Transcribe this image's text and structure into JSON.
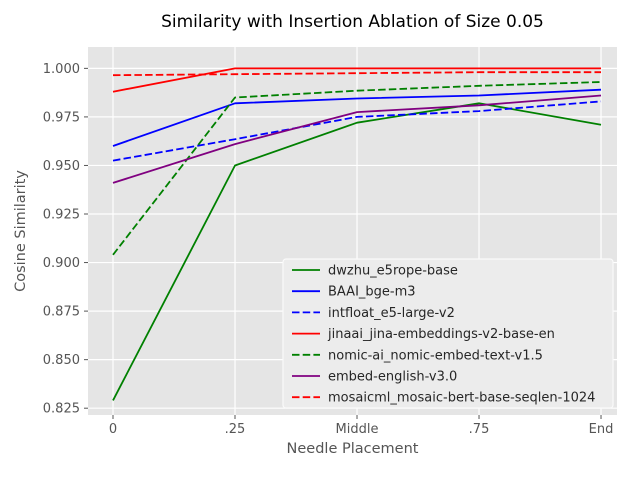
{
  "title": "Similarity with Insertion Ablation of Size 0.05",
  "chart_data": {
    "type": "line",
    "title": "Similarity with Insertion Ablation of Size 0.05",
    "xlabel": "Needle Placement",
    "ylabel": "Cosine Similarity",
    "categories": [
      "0",
      ".25",
      "Middle",
      ".75",
      "End"
    ],
    "x": [
      0,
      1,
      2,
      3,
      4
    ],
    "xlim": [
      -0.205,
      4.131
    ],
    "ylim": [
      0.8215,
      1.011
    ],
    "yticks": [
      0.825,
      0.85,
      0.875,
      0.9,
      0.925,
      0.95,
      0.975,
      1.0
    ],
    "ytick_labels": [
      "0.825",
      "0.850",
      "0.875",
      "0.900",
      "0.925",
      "0.950",
      "0.975",
      "1.000"
    ],
    "grid": true,
    "legend_position": "lower right",
    "series": [
      {
        "name": "dwzhu_e5rope-base",
        "color": "#008000",
        "dash": "solid",
        "values": [
          0.829,
          0.95,
          0.972,
          0.982,
          0.971
        ]
      },
      {
        "name": "BAAI_bge-m3",
        "color": "#0000ff",
        "dash": "solid",
        "values": [
          0.96,
          0.982,
          0.9845,
          0.986,
          0.989
        ]
      },
      {
        "name": "intfloat_e5-large-v2",
        "color": "#0000ff",
        "dash": "dashed",
        "values": [
          0.9525,
          0.9635,
          0.975,
          0.978,
          0.983
        ]
      },
      {
        "name": "jinaai_jina-embeddings-v2-base-en",
        "color": "#ff0000",
        "dash": "solid",
        "values": [
          0.988,
          1.0,
          1.0,
          1.0,
          1.0
        ]
      },
      {
        "name": "nomic-ai_nomic-embed-text-v1.5",
        "color": "#008000",
        "dash": "dashed",
        "values": [
          0.904,
          0.985,
          0.9885,
          0.991,
          0.993
        ]
      },
      {
        "name": "embed-english-v3.0",
        "color": "#800080",
        "dash": "solid",
        "values": [
          0.941,
          0.961,
          0.9775,
          0.981,
          0.986
        ]
      },
      {
        "name": "mosaicml_mosaic-bert-base-seqlen-1024",
        "color": "#ff0000",
        "dash": "dashed",
        "values": [
          0.9965,
          0.997,
          0.9975,
          0.998,
          0.998
        ]
      }
    ],
    "colors": {
      "figure_bg": "#ffffff",
      "plot_bg": "#e5e5e5",
      "grid": "#ffffff",
      "tick": "#555555",
      "tick_text": "#555555",
      "label_text": "#555555",
      "title_text": "#000000",
      "legend_bg": "#ececec",
      "legend_border": "#fafafa",
      "legend_text": "#262626"
    }
  }
}
